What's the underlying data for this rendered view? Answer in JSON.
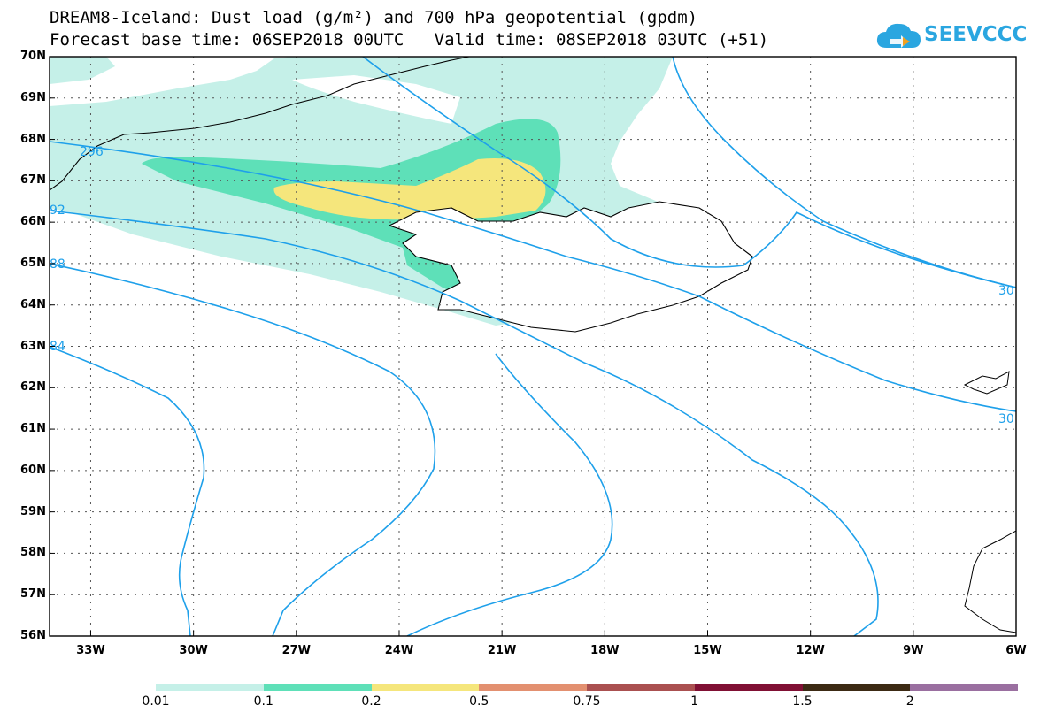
{
  "title_line1": "DREAM8-Iceland: Dust load (g/m²) and 700 hPa geopotential (gpdm)",
  "title_line2": "Forecast base time: 06SEP2018 00UTC   Valid time: 08SEP2018 03UTC (+51)",
  "logo": {
    "text": "SEEVCCC",
    "icon": "cloud-icon"
  },
  "latitudes": [
    "70N",
    "69N",
    "68N",
    "67N",
    "66N",
    "65N",
    "64N",
    "63N",
    "62N",
    "61N",
    "60N",
    "59N",
    "58N",
    "57N",
    "56N"
  ],
  "longitudes": [
    "33W",
    "30W",
    "27W",
    "24W",
    "21W",
    "18W",
    "15W",
    "12W",
    "9W",
    "6W"
  ],
  "contour_labels": {
    "c296": "296",
    "c292": "92",
    "c288": "88",
    "c284": "84",
    "c300a": "30",
    "c300b": "30"
  },
  "colorbar": {
    "labels": [
      "0.01",
      "0.1",
      "0.2",
      "0.5",
      "0.75",
      "1",
      "1.5",
      "2"
    ],
    "colors": [
      "#c5f0e8",
      "#5ee0b8",
      "#f5e67c",
      "#e39070",
      "#aa5050",
      "#801034",
      "#3c2a14",
      "#9a6fa0"
    ]
  },
  "colors": {
    "contour": "#1ea0ea",
    "coast": "#000000"
  }
}
